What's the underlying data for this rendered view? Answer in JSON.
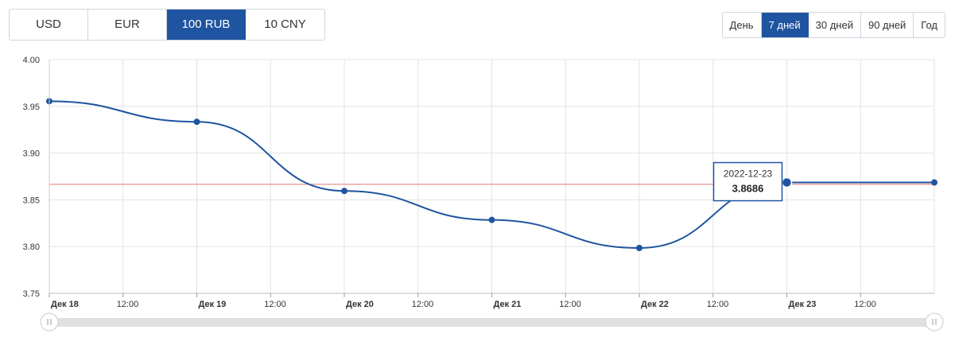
{
  "currency_tabs": [
    {
      "label": "USD",
      "active": false
    },
    {
      "label": "EUR",
      "active": false
    },
    {
      "label": "100 RUB",
      "active": true
    },
    {
      "label": "10 CNY",
      "active": false
    }
  ],
  "period_tabs": [
    {
      "label": "День",
      "active": false
    },
    {
      "label": "7 дней",
      "active": true
    },
    {
      "label": "30 дней",
      "active": false
    },
    {
      "label": "90 дней",
      "active": false
    },
    {
      "label": "Год",
      "active": false
    }
  ],
  "colors": {
    "accent": "#1f54a0",
    "line": "#1f54a0",
    "reference_line": "#d9534f",
    "grid": "#e3e3e3",
    "scrollbar": "#e0e0e0"
  },
  "chart_data": {
    "type": "line",
    "title": "",
    "xlabel": "",
    "ylabel": "",
    "ylim": [
      3.75,
      4.0
    ],
    "y_ticks": [
      "3.75",
      "3.80",
      "3.85",
      "3.90",
      "3.95",
      "4.00"
    ],
    "x_ticks": [
      {
        "label": "Дек 18",
        "major": true
      },
      {
        "label": "12:00",
        "major": false
      },
      {
        "label": "Дек 19",
        "major": true
      },
      {
        "label": "12:00",
        "major": false
      },
      {
        "label": "Дек 20",
        "major": true
      },
      {
        "label": "12:00",
        "major": false
      },
      {
        "label": "Дек 21",
        "major": true
      },
      {
        "label": "12:00",
        "major": false
      },
      {
        "label": "Дек 22",
        "major": true
      },
      {
        "label": "12:00",
        "major": false
      },
      {
        "label": "Дек 23",
        "major": true
      },
      {
        "label": "12:00",
        "major": false
      }
    ],
    "x": [
      "2022-12-18",
      "2022-12-19",
      "2022-12-20",
      "2022-12-21",
      "2022-12-22",
      "2022-12-23",
      "2022-12-24"
    ],
    "series": [
      {
        "values": [
          3.9555,
          3.9335,
          3.8595,
          3.8285,
          3.7985,
          3.8686,
          3.8686
        ]
      }
    ],
    "reference_line": 3.8666,
    "grid": true,
    "tooltip": {
      "date": "2022-12-23",
      "value": "3.8686"
    }
  }
}
